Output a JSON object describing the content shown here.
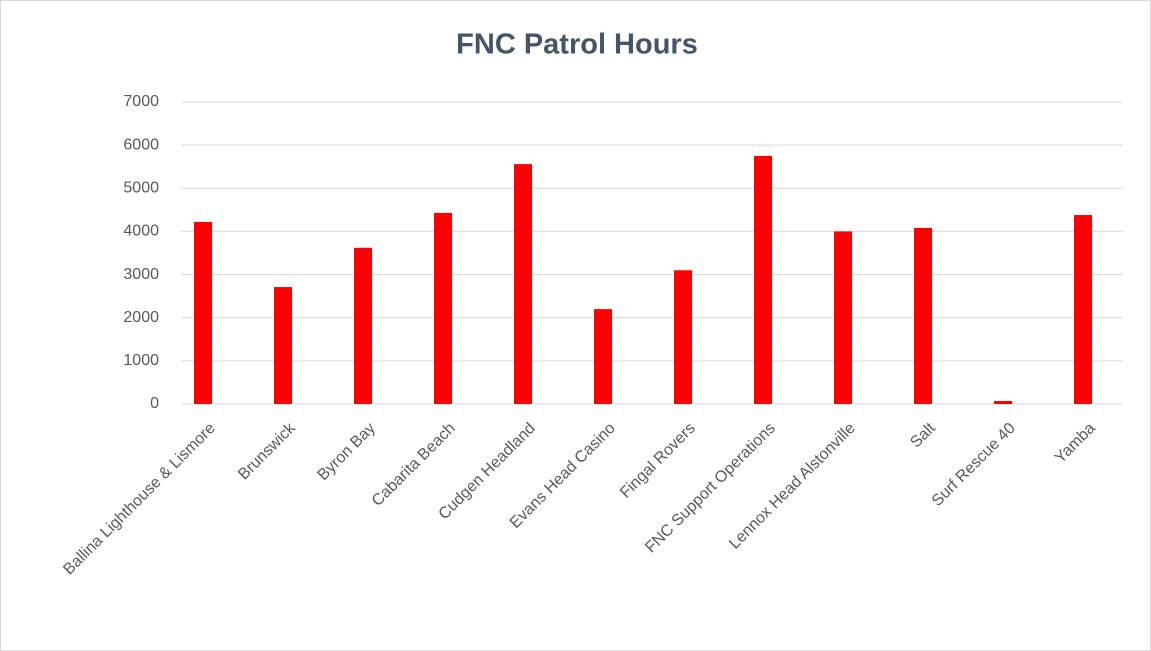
{
  "chart_data": {
    "type": "bar",
    "title": "FNC Patrol Hours",
    "categories": [
      "Ballina Lighthouse & Lismore",
      "Brunswick",
      "Byron Bay",
      "Cabarita Beach",
      "Cudgen Headland",
      "Evans Head Casino",
      "Fingal Rovers",
      "FNC Support Operations",
      "Lennox Head Alstonville",
      "Salt",
      "Surf Rescue 40",
      "Yamba"
    ],
    "values": [
      4220,
      2710,
      3620,
      4430,
      5560,
      2200,
      3100,
      5750,
      4000,
      4080,
      70,
      4380
    ],
    "color": "#ff0000",
    "ylim": [
      0,
      7000
    ],
    "yticks": [
      0,
      1000,
      2000,
      3000,
      4000,
      5000,
      6000,
      7000
    ],
    "grid": true
  }
}
